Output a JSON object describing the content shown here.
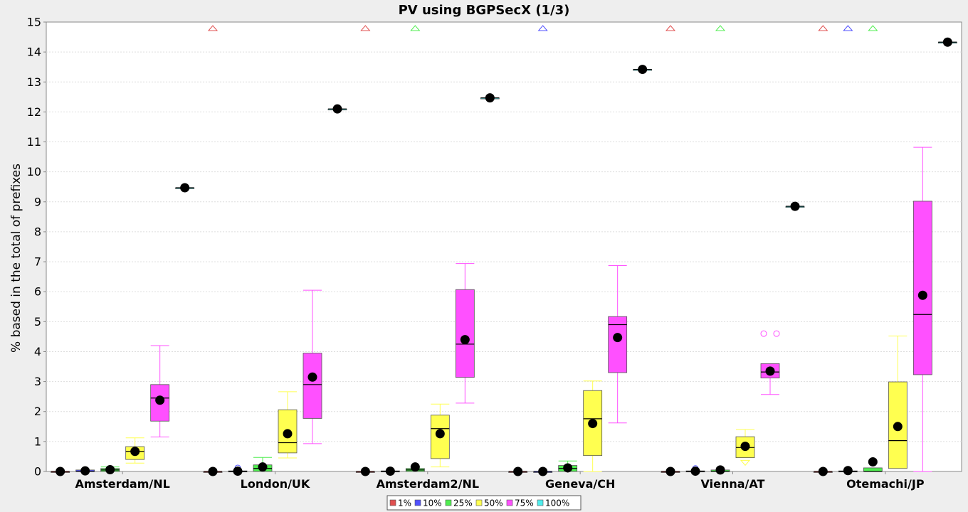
{
  "chart_data": {
    "type": "box",
    "title": "PV using BGPSecX  (1/3)",
    "xlabel": "",
    "ylabel": "% based in the total of prefixes",
    "ylim": [
      0,
      15
    ],
    "yticks": [
      0,
      1,
      2,
      3,
      4,
      5,
      6,
      7,
      8,
      9,
      10,
      11,
      12,
      13,
      14,
      15
    ],
    "grid": true,
    "legend_position": "bottom",
    "categories": [
      "Amsterdam/NL",
      "London/UK",
      "Amsterdam2/NL",
      "Geneva/CH",
      "Vienna/AT",
      "Otemachi/JP"
    ],
    "series": [
      {
        "name": "1%",
        "color": "#e05050",
        "boxes": [
          {
            "q1": 0,
            "median": 0,
            "q3": 0,
            "wlo": 0,
            "whi": 0,
            "mean": 0,
            "far_out_high": false
          },
          {
            "q1": 0,
            "median": 0,
            "q3": 0,
            "wlo": 0,
            "whi": 0,
            "mean": 0,
            "far_out_high": true
          },
          {
            "q1": 0,
            "median": 0,
            "q3": 0,
            "wlo": 0,
            "whi": 0,
            "mean": 0,
            "far_out_high": true
          },
          {
            "q1": 0,
            "median": 0,
            "q3": 0,
            "wlo": 0,
            "whi": 0,
            "mean": 0,
            "far_out_high": false
          },
          {
            "q1": 0,
            "median": 0,
            "q3": 0,
            "wlo": 0,
            "whi": 0,
            "mean": 0,
            "far_out_high": true
          },
          {
            "q1": 0,
            "median": 0,
            "q3": 0,
            "wlo": 0,
            "whi": 0,
            "mean": 0,
            "far_out_high": true
          }
        ]
      },
      {
        "name": "10%",
        "color": "#5050ff",
        "boxes": [
          {
            "q1": 0,
            "median": 0,
            "q3": 0.05,
            "wlo": 0,
            "whi": 0.05,
            "mean": 0.02,
            "far_out_high": false
          },
          {
            "q1": 0,
            "median": 0,
            "q3": 0.02,
            "wlo": 0,
            "whi": 0.02,
            "mean": 0.01,
            "outliers": [
              0.12
            ],
            "far_out_high": false
          },
          {
            "q1": 0,
            "median": 0,
            "q3": 0.02,
            "wlo": 0,
            "whi": 0.02,
            "mean": 0.01,
            "far_out_high": false
          },
          {
            "q1": 0,
            "median": 0,
            "q3": 0,
            "wlo": 0,
            "whi": 0,
            "mean": 0,
            "far_out_high": true
          },
          {
            "q1": 0,
            "median": 0,
            "q3": 0.02,
            "wlo": 0,
            "whi": 0.02,
            "mean": 0.01,
            "outliers": [
              0.1
            ],
            "far_out_high": false
          },
          {
            "q1": 0,
            "median": 0,
            "q3": 0.02,
            "wlo": 0,
            "whi": 0.02,
            "mean": 0.03,
            "far_out_high": true
          }
        ]
      },
      {
        "name": "25%",
        "color": "#50ee50",
        "boxes": [
          {
            "q1": 0,
            "median": 0.05,
            "q3": 0.1,
            "wlo": 0,
            "whi": 0.15,
            "mean": 0.06,
            "far_out_high": false
          },
          {
            "q1": 0,
            "median": 0.1,
            "q3": 0.22,
            "wlo": 0,
            "whi": 0.47,
            "mean": 0.15,
            "far_out_high": false
          },
          {
            "q1": 0,
            "median": 0.05,
            "q3": 0.1,
            "wlo": 0,
            "whi": 0.1,
            "mean": 0.15,
            "far_out_high": true
          },
          {
            "q1": 0,
            "median": 0.1,
            "q3": 0.2,
            "wlo": 0,
            "whi": 0.35,
            "mean": 0.12,
            "far_out_high": false
          },
          {
            "q1": 0,
            "median": 0,
            "q3": 0.05,
            "wlo": 0,
            "whi": 0.05,
            "mean": 0.05,
            "far_out_high": true
          },
          {
            "q1": 0,
            "median": 0,
            "q3": 0.12,
            "wlo": 0,
            "whi": 0.12,
            "mean": 0.32,
            "far_out_high": true
          }
        ]
      },
      {
        "name": "50%",
        "color": "#ffff50",
        "boxes": [
          {
            "q1": 0.4,
            "median": 0.67,
            "q3": 0.83,
            "wlo": 0.28,
            "whi": 1.12,
            "mean": 0.67,
            "far_out_high": false
          },
          {
            "q1": 0.62,
            "median": 0.96,
            "q3": 2.06,
            "wlo": 0.45,
            "whi": 2.66,
            "mean": 1.26,
            "far_out_high": false
          },
          {
            "q1": 0.43,
            "median": 1.43,
            "q3": 1.88,
            "wlo": 0.15,
            "whi": 2.25,
            "mean": 1.26,
            "far_out_high": false
          },
          {
            "q1": 0.53,
            "median": 1.76,
            "q3": 2.7,
            "wlo": 0,
            "whi": 3.02,
            "mean": 1.6,
            "far_out_high": false
          },
          {
            "q1": 0.46,
            "median": 0.8,
            "q3": 1.16,
            "wlo": 0.46,
            "whi": 1.4,
            "mean": 0.84,
            "far_out_low": true,
            "far_out_high": false
          },
          {
            "q1": 0.1,
            "median": 1.03,
            "q3": 2.99,
            "wlo": 0.1,
            "whi": 4.52,
            "mean": 1.5,
            "far_out_high": false
          }
        ]
      },
      {
        "name": "75%",
        "color": "#ff50ff",
        "boxes": [
          {
            "q1": 1.68,
            "median": 2.45,
            "q3": 2.9,
            "wlo": 1.15,
            "whi": 4.2,
            "mean": 2.38,
            "far_out_high": false
          },
          {
            "q1": 1.77,
            "median": 2.9,
            "q3": 3.95,
            "wlo": 0.93,
            "whi": 6.05,
            "mean": 3.15,
            "far_out_high": false
          },
          {
            "q1": 3.14,
            "median": 4.25,
            "q3": 6.07,
            "wlo": 2.28,
            "whi": 6.94,
            "mean": 4.4,
            "far_out_high": false
          },
          {
            "q1": 3.3,
            "median": 4.9,
            "q3": 5.17,
            "wlo": 1.62,
            "whi": 6.87,
            "mean": 4.47,
            "far_out_high": false
          },
          {
            "q1": 3.12,
            "median": 3.32,
            "q3": 3.6,
            "wlo": 2.57,
            "whi": 3.6,
            "mean": 3.35,
            "outliers": [
              4.6,
              4.6
            ],
            "far_out_high": false
          },
          {
            "q1": 3.23,
            "median": 5.24,
            "q3": 9.02,
            "wlo": 0,
            "whi": 10.82,
            "mean": 5.88,
            "far_out_high": false
          }
        ]
      },
      {
        "name": "100%",
        "color": "#50eeee",
        "boxes": [
          {
            "q1": 9.47,
            "median": 9.47,
            "q3": 9.47,
            "wlo": 9.47,
            "whi": 9.47,
            "mean": 9.47,
            "far_out_high": false
          },
          {
            "q1": 12.1,
            "median": 12.1,
            "q3": 12.1,
            "wlo": 12.1,
            "whi": 12.1,
            "mean": 12.1,
            "far_out_high": false
          },
          {
            "q1": 12.47,
            "median": 12.47,
            "q3": 12.47,
            "wlo": 12.47,
            "whi": 12.47,
            "mean": 12.47,
            "far_out_high": false
          },
          {
            "q1": 13.42,
            "median": 13.42,
            "q3": 13.42,
            "wlo": 13.42,
            "whi": 13.42,
            "mean": 13.42,
            "far_out_high": false
          },
          {
            "q1": 8.85,
            "median": 8.85,
            "q3": 8.85,
            "wlo": 8.85,
            "whi": 8.85,
            "mean": 8.85,
            "far_out_high": false
          },
          {
            "q1": 14.33,
            "median": 14.33,
            "q3": 14.33,
            "wlo": 14.33,
            "whi": 14.33,
            "mean": 14.33,
            "far_out_high": false
          }
        ]
      }
    ]
  }
}
